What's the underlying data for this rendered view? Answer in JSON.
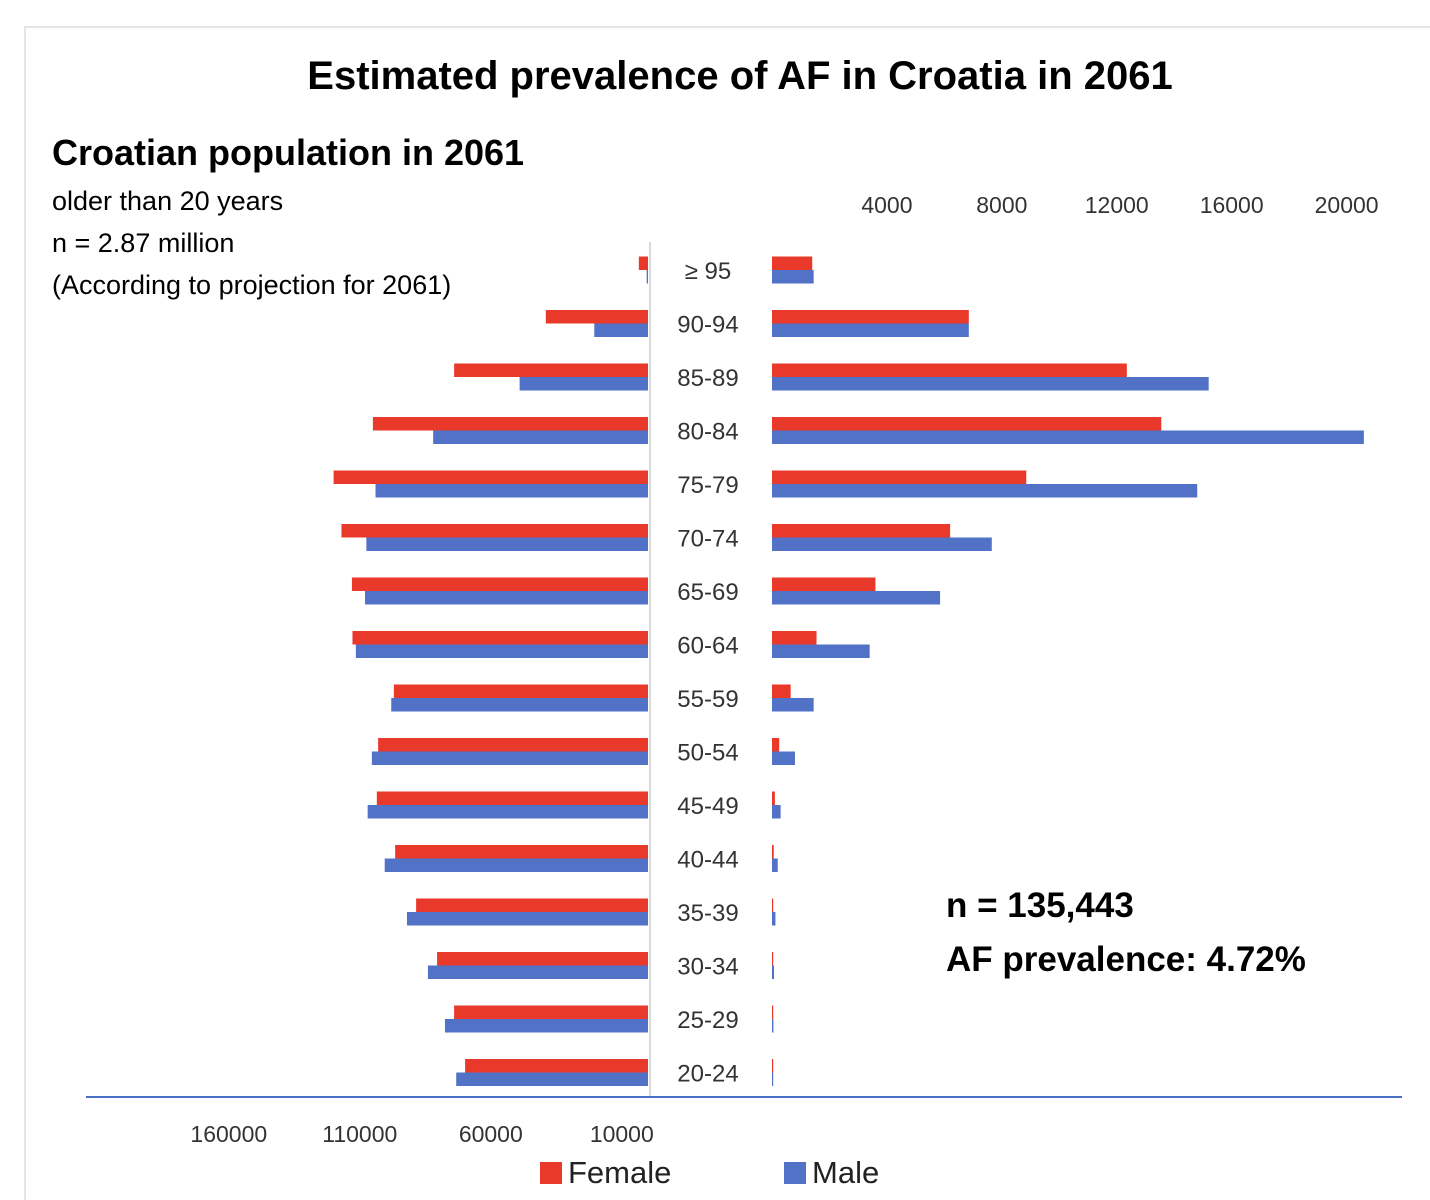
{
  "title": "Estimated prevalence of AF in Croatia in 2061",
  "population": {
    "title": "Croatian population in 2061",
    "line1": "older than 20 years",
    "line2": "n = 2.87 million",
    "line3": "(According to projection for 2061)"
  },
  "annotation": {
    "n": "n = 135,443",
    "prevalence": "AF prevalence: 4.72%"
  },
  "colors": {
    "female": "#e8392a",
    "male": "#5272c8",
    "axis": "#4a6fc4",
    "divider": "#d9d9d9"
  },
  "chart_data": {
    "type": "bar",
    "orientation": "horizontal-pyramid",
    "categories": [
      "≥ 95",
      "90-94",
      "85-89",
      "80-84",
      "75-79",
      "70-74",
      "65-69",
      "60-64",
      "55-59",
      "50-54",
      "45-49",
      "40-44",
      "35-39",
      "30-34",
      "25-29",
      "20-24"
    ],
    "population": {
      "xlim": [
        0,
        170000
      ],
      "tick_labels": [
        "160000",
        "110000",
        "60000",
        "10000"
      ],
      "tick_values": [
        160000,
        110000,
        60000,
        10000
      ],
      "series": [
        {
          "name": "Female",
          "values": [
            3500,
            39000,
            74000,
            105000,
            120000,
            117000,
            113000,
            112800,
            97000,
            103000,
            103500,
            96500,
            88500,
            80500,
            74000,
            69800
          ]
        },
        {
          "name": "Male",
          "values": [
            500,
            20500,
            49000,
            82000,
            104000,
            107500,
            108000,
            111500,
            98000,
            105400,
            107000,
            100500,
            92000,
            84000,
            77500,
            73200
          ]
        }
      ]
    },
    "af_cases": {
      "xlim": [
        0,
        21000
      ],
      "tick_labels": [
        "4000",
        "8000",
        "12000",
        "16000",
        "20000"
      ],
      "tick_values": [
        4000,
        8000,
        12000,
        16000,
        20000
      ],
      "series": [
        {
          "name": "Female",
          "values": [
            1400,
            6850,
            12350,
            13550,
            8850,
            6200,
            3600,
            1550,
            650,
            250,
            100,
            60,
            30,
            20,
            15,
            10
          ]
        },
        {
          "name": "Male",
          "values": [
            1450,
            6850,
            15200,
            20600,
            14800,
            7650,
            5850,
            3400,
            1450,
            800,
            300,
            200,
            120,
            70,
            50,
            30
          ]
        }
      ]
    },
    "legend": [
      "Female",
      "Male"
    ],
    "legend_position": "bottom"
  }
}
